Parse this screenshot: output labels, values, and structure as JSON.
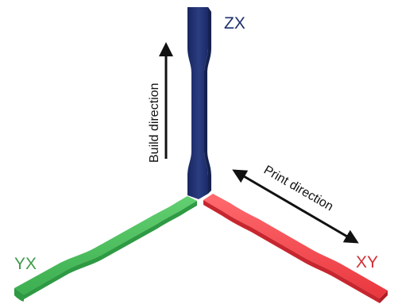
{
  "labels": {
    "zx": "ZX",
    "yx": "YX",
    "xy": "XY",
    "build_direction": "Build direction",
    "print_direction": "Print direction"
  },
  "colors": {
    "zx_specimen": "#1e2f6e",
    "zx_specimen_highlight": "#3a4d96",
    "zx_label": "#1e2f6e",
    "yx_specimen": "#4bbf5c",
    "yx_specimen_shadow": "#2e9a43",
    "yx_label": "#3f9a4a",
    "xy_specimen": "#f2494f",
    "xy_specimen_shadow": "#c7262e",
    "xy_label": "#d23035",
    "arrows": "#111111"
  }
}
